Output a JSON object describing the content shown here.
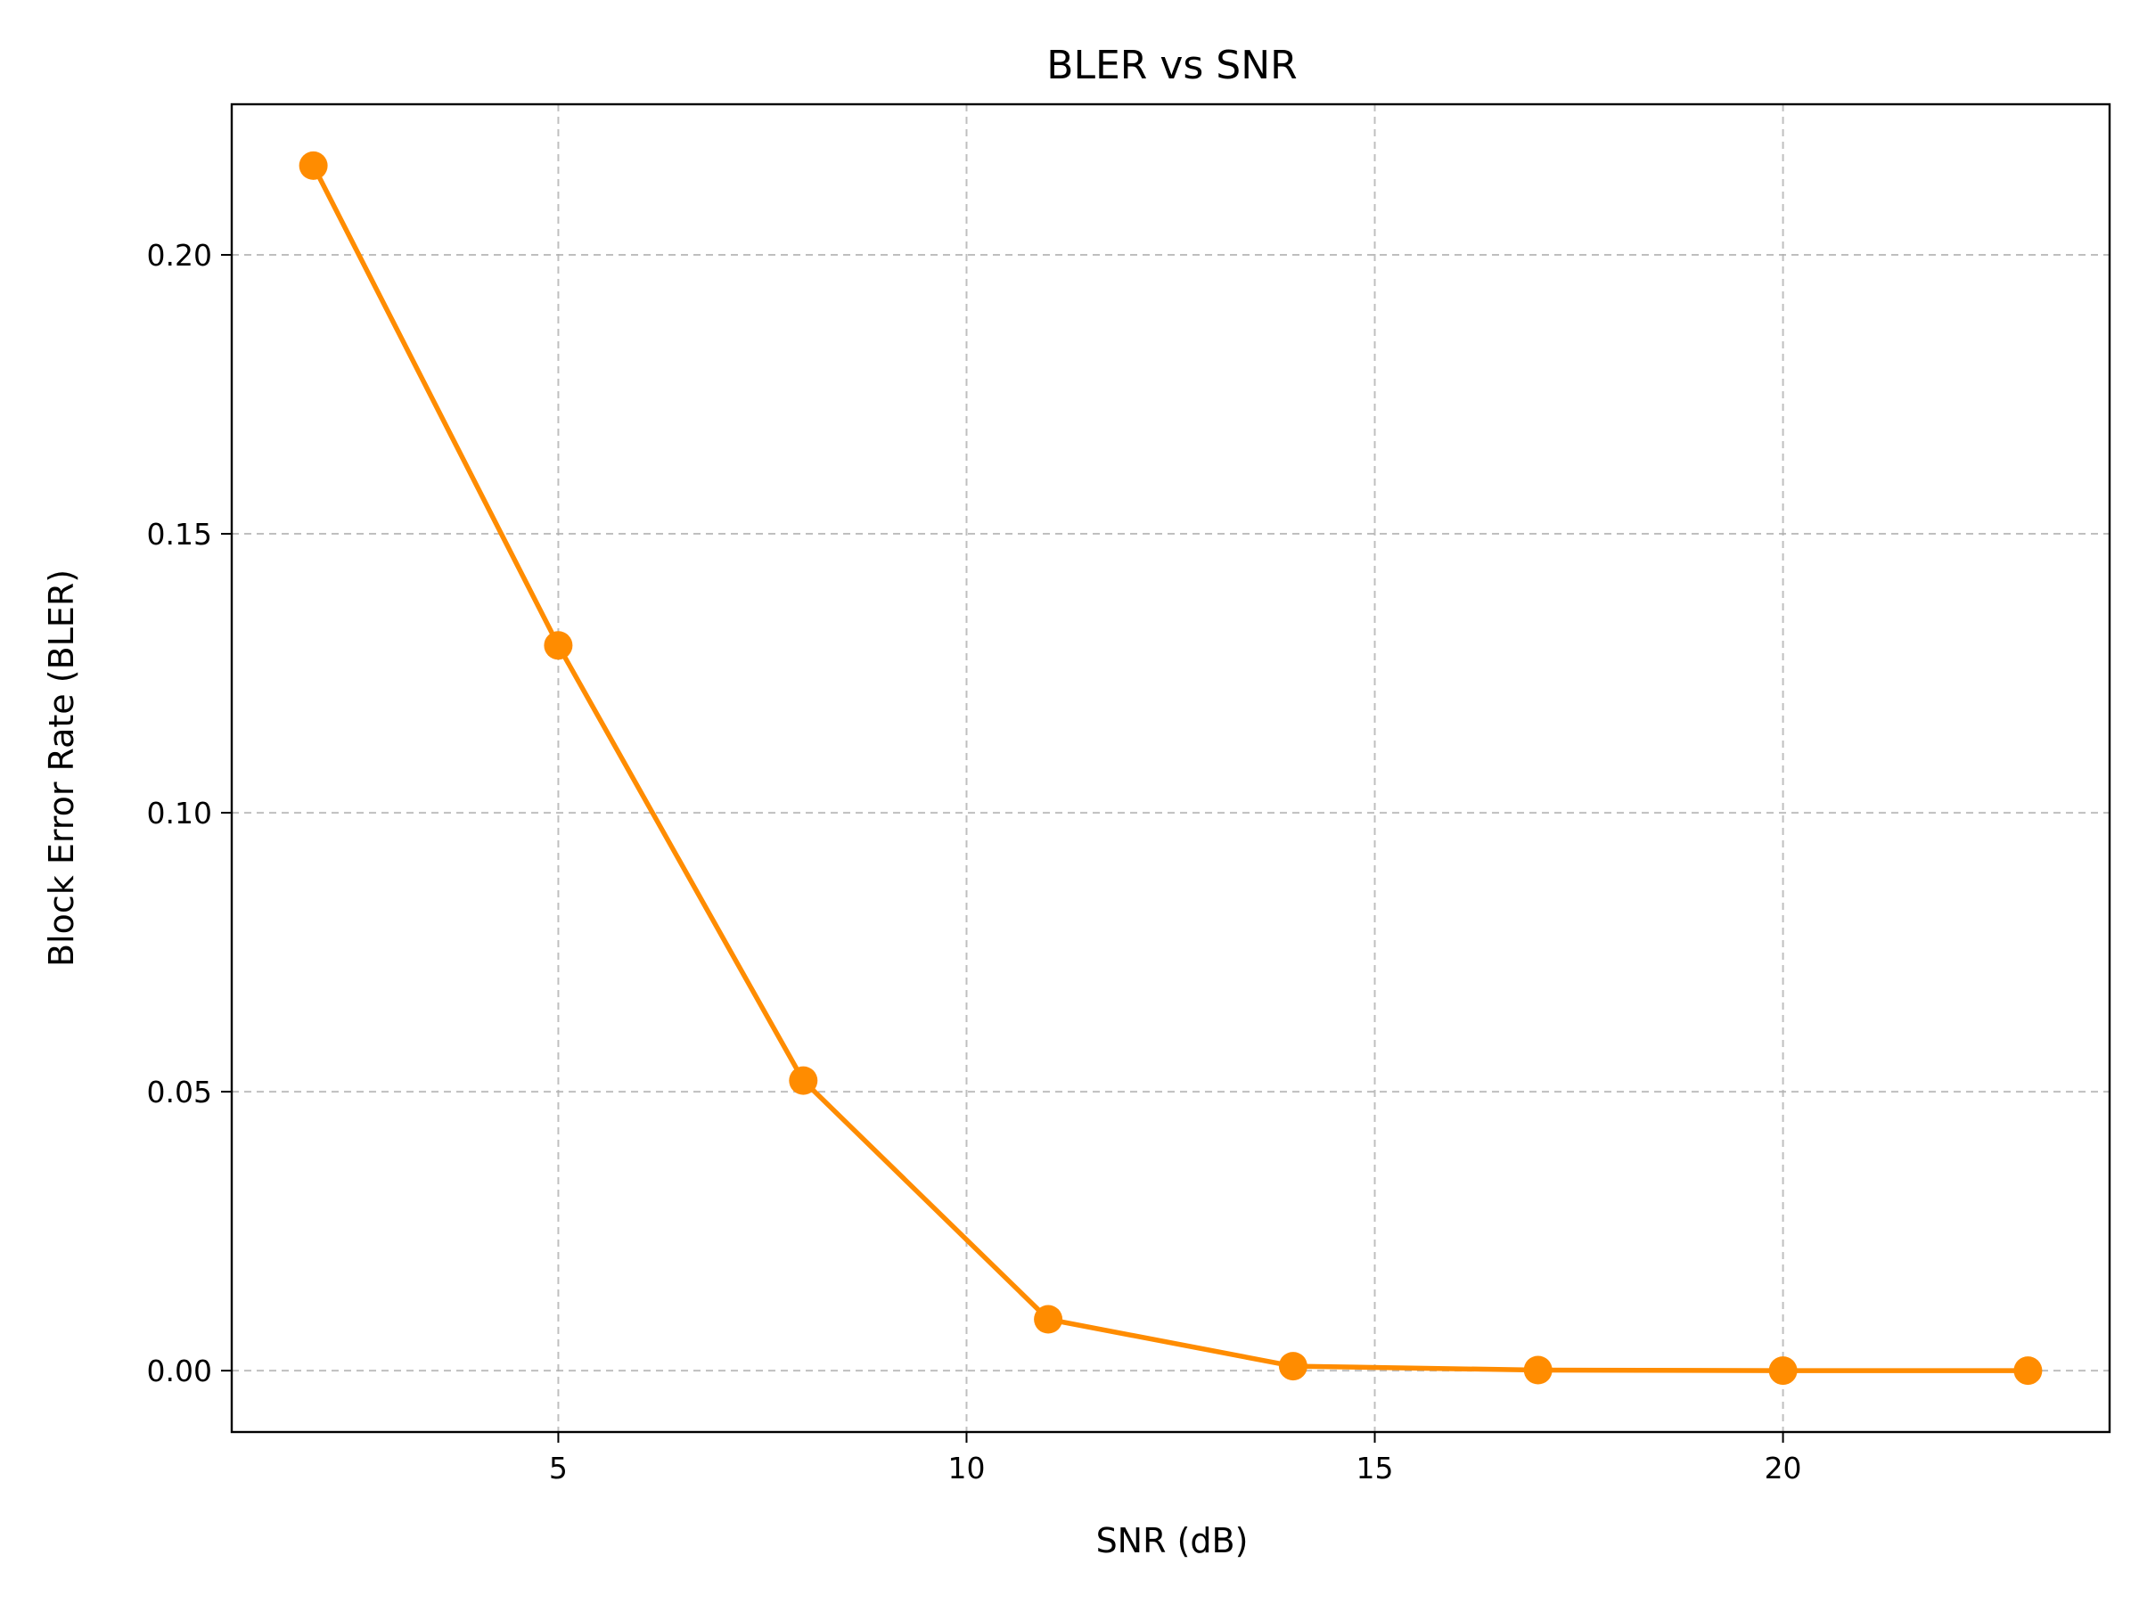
{
  "chart_data": {
    "type": "line",
    "title": "BLER vs SNR",
    "xlabel": "SNR (dB)",
    "ylabel": "Block Error Rate (BLER)",
    "xlim": [
      1,
      24
    ],
    "ylim": [
      -0.011,
      0.227
    ],
    "xticks": [
      5,
      10,
      15,
      20
    ],
    "xtick_labels": [
      "5",
      "10",
      "15",
      "20"
    ],
    "yticks": [
      0.0,
      0.05,
      0.1,
      0.15,
      0.2
    ],
    "ytick_labels": [
      "0.00",
      "0.05",
      "0.10",
      "0.15",
      "0.20"
    ],
    "grid": true,
    "series": [
      {
        "color": "#ff8c00",
        "marker": "circle",
        "x": [
          2,
          5,
          8,
          11,
          14,
          17,
          20,
          23
        ],
        "y": [
          0.216,
          0.13,
          0.052,
          0.0092,
          0.0008,
          0.0001,
          0.0,
          0.0
        ]
      }
    ]
  }
}
